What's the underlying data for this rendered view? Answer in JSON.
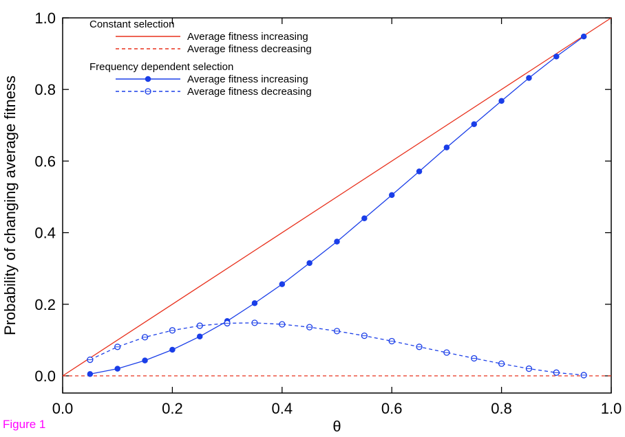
{
  "figure_label": "Figure 1",
  "chart_data": {
    "type": "line",
    "xlabel": "θ",
    "ylabel": "Probability of changing average fitness",
    "xlim": [
      0,
      1
    ],
    "ylim": [
      -0.05,
      1.05
    ],
    "xticks": [
      "0.0",
      "0.2",
      "0.4",
      "0.6",
      "0.8",
      "1.0"
    ],
    "yticks": [
      "0.0",
      "0.2",
      "0.4",
      "0.6",
      "0.8",
      "1.0"
    ],
    "grid": false,
    "legend_position": "top-left",
    "legend_groups": [
      {
        "title": "Constant selection",
        "series": [
          0,
          1
        ]
      },
      {
        "title": "Frequency dependent selection",
        "series": [
          2,
          3
        ]
      }
    ],
    "series": [
      {
        "name": "Average fitness increasing",
        "color": "#e8301c",
        "dash": "solid",
        "marker": "none",
        "x": [
          0,
          1
        ],
        "y": [
          0,
          1
        ]
      },
      {
        "name": "Average fitness decreasing",
        "color": "#e8301c",
        "dash": "dashed",
        "marker": "none",
        "x": [
          0,
          1
        ],
        "y": [
          0,
          0
        ]
      },
      {
        "name": "Average fitness increasing",
        "color": "#1a3ee8",
        "dash": "solid",
        "marker": "filled-circle",
        "x": [
          0.05,
          0.1,
          0.15,
          0.2,
          0.25,
          0.3,
          0.35,
          0.4,
          0.45,
          0.5,
          0.55,
          0.6,
          0.65,
          0.7,
          0.75,
          0.8,
          0.85,
          0.9,
          0.95
        ],
        "y": [
          0.005,
          0.02,
          0.043,
          0.073,
          0.11,
          0.153,
          0.203,
          0.256,
          0.315,
          0.375,
          0.44,
          0.505,
          0.571,
          0.638,
          0.703,
          0.768,
          0.832,
          0.892,
          0.948
        ]
      },
      {
        "name": "Average fitness decreasing",
        "color": "#1a3ee8",
        "dash": "dashed",
        "marker": "open-circle",
        "x": [
          0.05,
          0.1,
          0.15,
          0.2,
          0.25,
          0.3,
          0.35,
          0.4,
          0.45,
          0.5,
          0.55,
          0.6,
          0.65,
          0.7,
          0.75,
          0.8,
          0.85,
          0.9,
          0.95
        ],
        "y": [
          0.045,
          0.081,
          0.108,
          0.127,
          0.14,
          0.147,
          0.148,
          0.144,
          0.136,
          0.125,
          0.112,
          0.097,
          0.081,
          0.065,
          0.049,
          0.034,
          0.02,
          0.009,
          0.002
        ]
      }
    ]
  }
}
